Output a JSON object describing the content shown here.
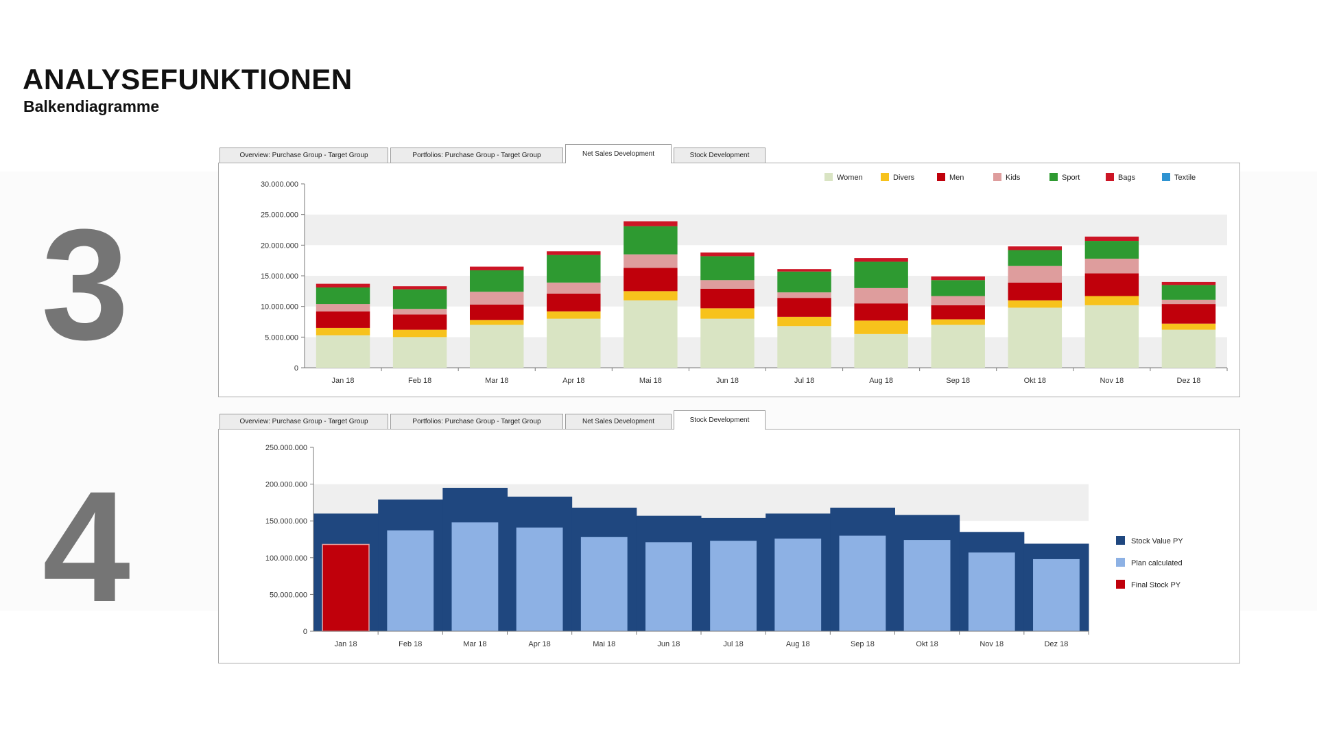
{
  "header": {
    "title": "ANALYSEFUNKTIONEN",
    "subtitle": "Balkendiagramme"
  },
  "slide_numbers": {
    "first": "3",
    "second": "4"
  },
  "tabs": [
    "Overview: Purchase Group - Target Group",
    "Portfolios: Purchase Group - Target Group",
    "Net Sales Development",
    "Stock Development"
  ],
  "chart_data": [
    {
      "type": "bar",
      "stacked": true,
      "title": "Net Sales Development",
      "categories": [
        "Jan 18",
        "Feb 18",
        "Mar 18",
        "Apr 18",
        "Mai 18",
        "Jun 18",
        "Jul 18",
        "Aug 18",
        "Sep 18",
        "Okt 18",
        "Nov 18",
        "Dez 18"
      ],
      "ylim": [
        0,
        30000000
      ],
      "yticks": [
        "0",
        "5.000.000",
        "10.000.000",
        "15.000.000",
        "20.000.000",
        "25.000.000",
        "30.000.000"
      ],
      "legend_position": "top-right",
      "series": [
        {
          "name": "Women",
          "color": "#d9e4c3",
          "values": [
            5300000,
            5000000,
            7000000,
            8000000,
            11000000,
            8000000,
            6800000,
            5500000,
            7000000,
            9800000,
            10200000,
            6200000
          ]
        },
        {
          "name": "Divers",
          "color": "#f7c21c",
          "values": [
            1200000,
            1200000,
            800000,
            1200000,
            1500000,
            1700000,
            1500000,
            2200000,
            900000,
            1200000,
            1500000,
            1000000
          ]
        },
        {
          "name": "Men",
          "color": "#c0000b",
          "values": [
            2700000,
            2500000,
            2500000,
            2900000,
            3800000,
            3200000,
            3100000,
            2800000,
            2300000,
            2900000,
            3700000,
            3200000
          ]
        },
        {
          "name": "Kids",
          "color": "#de9d9d",
          "values": [
            1200000,
            900000,
            2100000,
            1800000,
            2200000,
            1400000,
            900000,
            2500000,
            1500000,
            2700000,
            2400000,
            700000
          ]
        },
        {
          "name": "Sport",
          "color": "#2e9a31",
          "values": [
            2700000,
            3200000,
            3500000,
            4500000,
            4600000,
            3900000,
            3400000,
            4300000,
            2600000,
            2600000,
            2900000,
            2400000
          ]
        },
        {
          "name": "Bags",
          "color": "#cc1525",
          "values": [
            600000,
            500000,
            600000,
            600000,
            800000,
            600000,
            400000,
            600000,
            600000,
            600000,
            700000,
            500000
          ]
        },
        {
          "name": "Textile",
          "color": "#2e93d1",
          "values": [
            0,
            0,
            0,
            0,
            0,
            0,
            0,
            0,
            0,
            0,
            0,
            0
          ]
        }
      ]
    },
    {
      "type": "bar",
      "stacked": false,
      "title": "Stock Development",
      "categories": [
        "Jan 18",
        "Feb 18",
        "Mar 18",
        "Apr 18",
        "Mai 18",
        "Jun 18",
        "Jul 18",
        "Aug 18",
        "Sep 18",
        "Okt 18",
        "Nov 18",
        "Dez 18"
      ],
      "ylim": [
        0,
        250000000
      ],
      "yticks": [
        "0",
        "50.000.000",
        "100.000.000",
        "150.000.000",
        "200.000.000",
        "250.000.000"
      ],
      "legend_position": "right",
      "series": [
        {
          "name": "Stock Value PY",
          "color": "#1f477f",
          "values": [
            160000000,
            179000000,
            195000000,
            183000000,
            168000000,
            157000000,
            154000000,
            160000000,
            168000000,
            158000000,
            135000000,
            119000000
          ]
        },
        {
          "name": "Plan calculated",
          "color": "#8db1e4",
          "values": [
            null,
            137000000,
            148000000,
            141000000,
            128000000,
            121000000,
            123000000,
            126000000,
            130000000,
            124000000,
            107000000,
            98000000
          ]
        },
        {
          "name": "Final Stock PY",
          "color": "#c0000b",
          "values": [
            118000000,
            null,
            null,
            null,
            null,
            null,
            null,
            null,
            null,
            null,
            null,
            null
          ]
        }
      ]
    }
  ]
}
